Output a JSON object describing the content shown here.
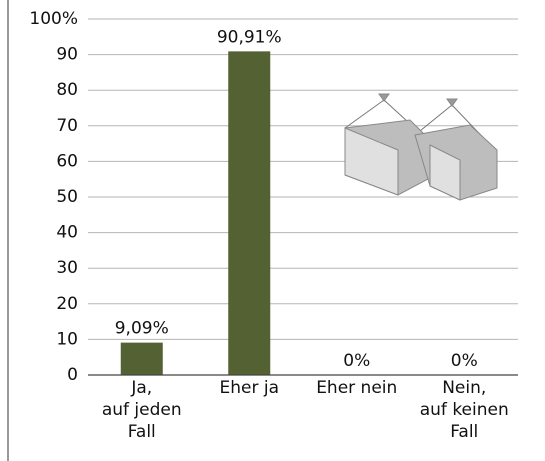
{
  "chart_data": {
    "type": "bar",
    "categories": [
      "Ja,\nauf jeden\nFall",
      "Eher ja",
      "Eher nein",
      "Nein,\nauf keinen\nFall"
    ],
    "values": [
      9.09,
      90.91,
      0,
      0
    ],
    "value_labels": [
      "9,09%",
      "90,91%",
      "0%",
      "0%"
    ],
    "color": "#536133",
    "ylim": [
      0,
      100
    ],
    "yticks": [
      0,
      10,
      20,
      30,
      40,
      50,
      60,
      70,
      80,
      90,
      {
        "value": 100,
        "label": "100%"
      }
    ],
    "grid": true
  }
}
